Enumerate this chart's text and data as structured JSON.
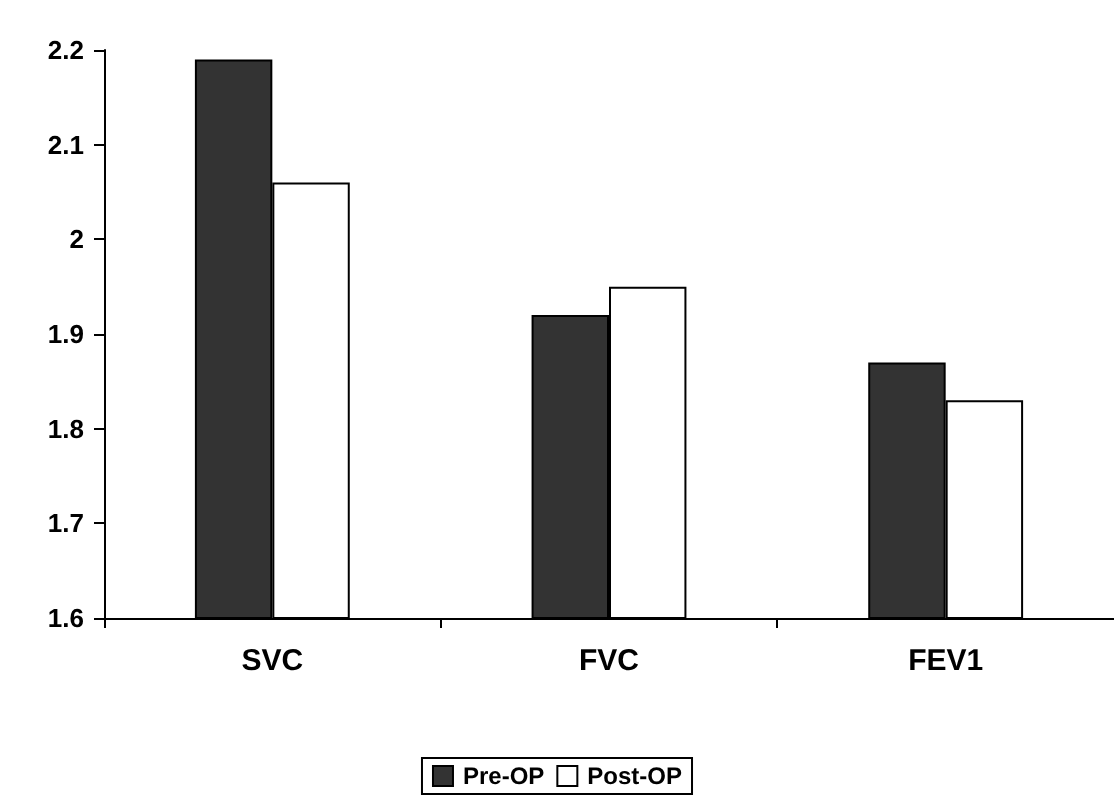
{
  "chart_data": {
    "type": "bar",
    "categories": [
      "SVC",
      "FVC",
      "FEV1"
    ],
    "series": [
      {
        "name": "Pre-OP",
        "color": "#333333",
        "values": [
          2.19,
          1.92,
          1.87
        ]
      },
      {
        "name": "Post-OP",
        "color": "#ffffff",
        "values": [
          2.06,
          1.95,
          1.83
        ]
      }
    ],
    "ylim": [
      1.6,
      2.2
    ],
    "yticks": [
      1.6,
      1.7,
      1.8,
      1.9,
      2,
      2.1,
      2.2
    ],
    "grid": false,
    "legend": "bottom"
  }
}
